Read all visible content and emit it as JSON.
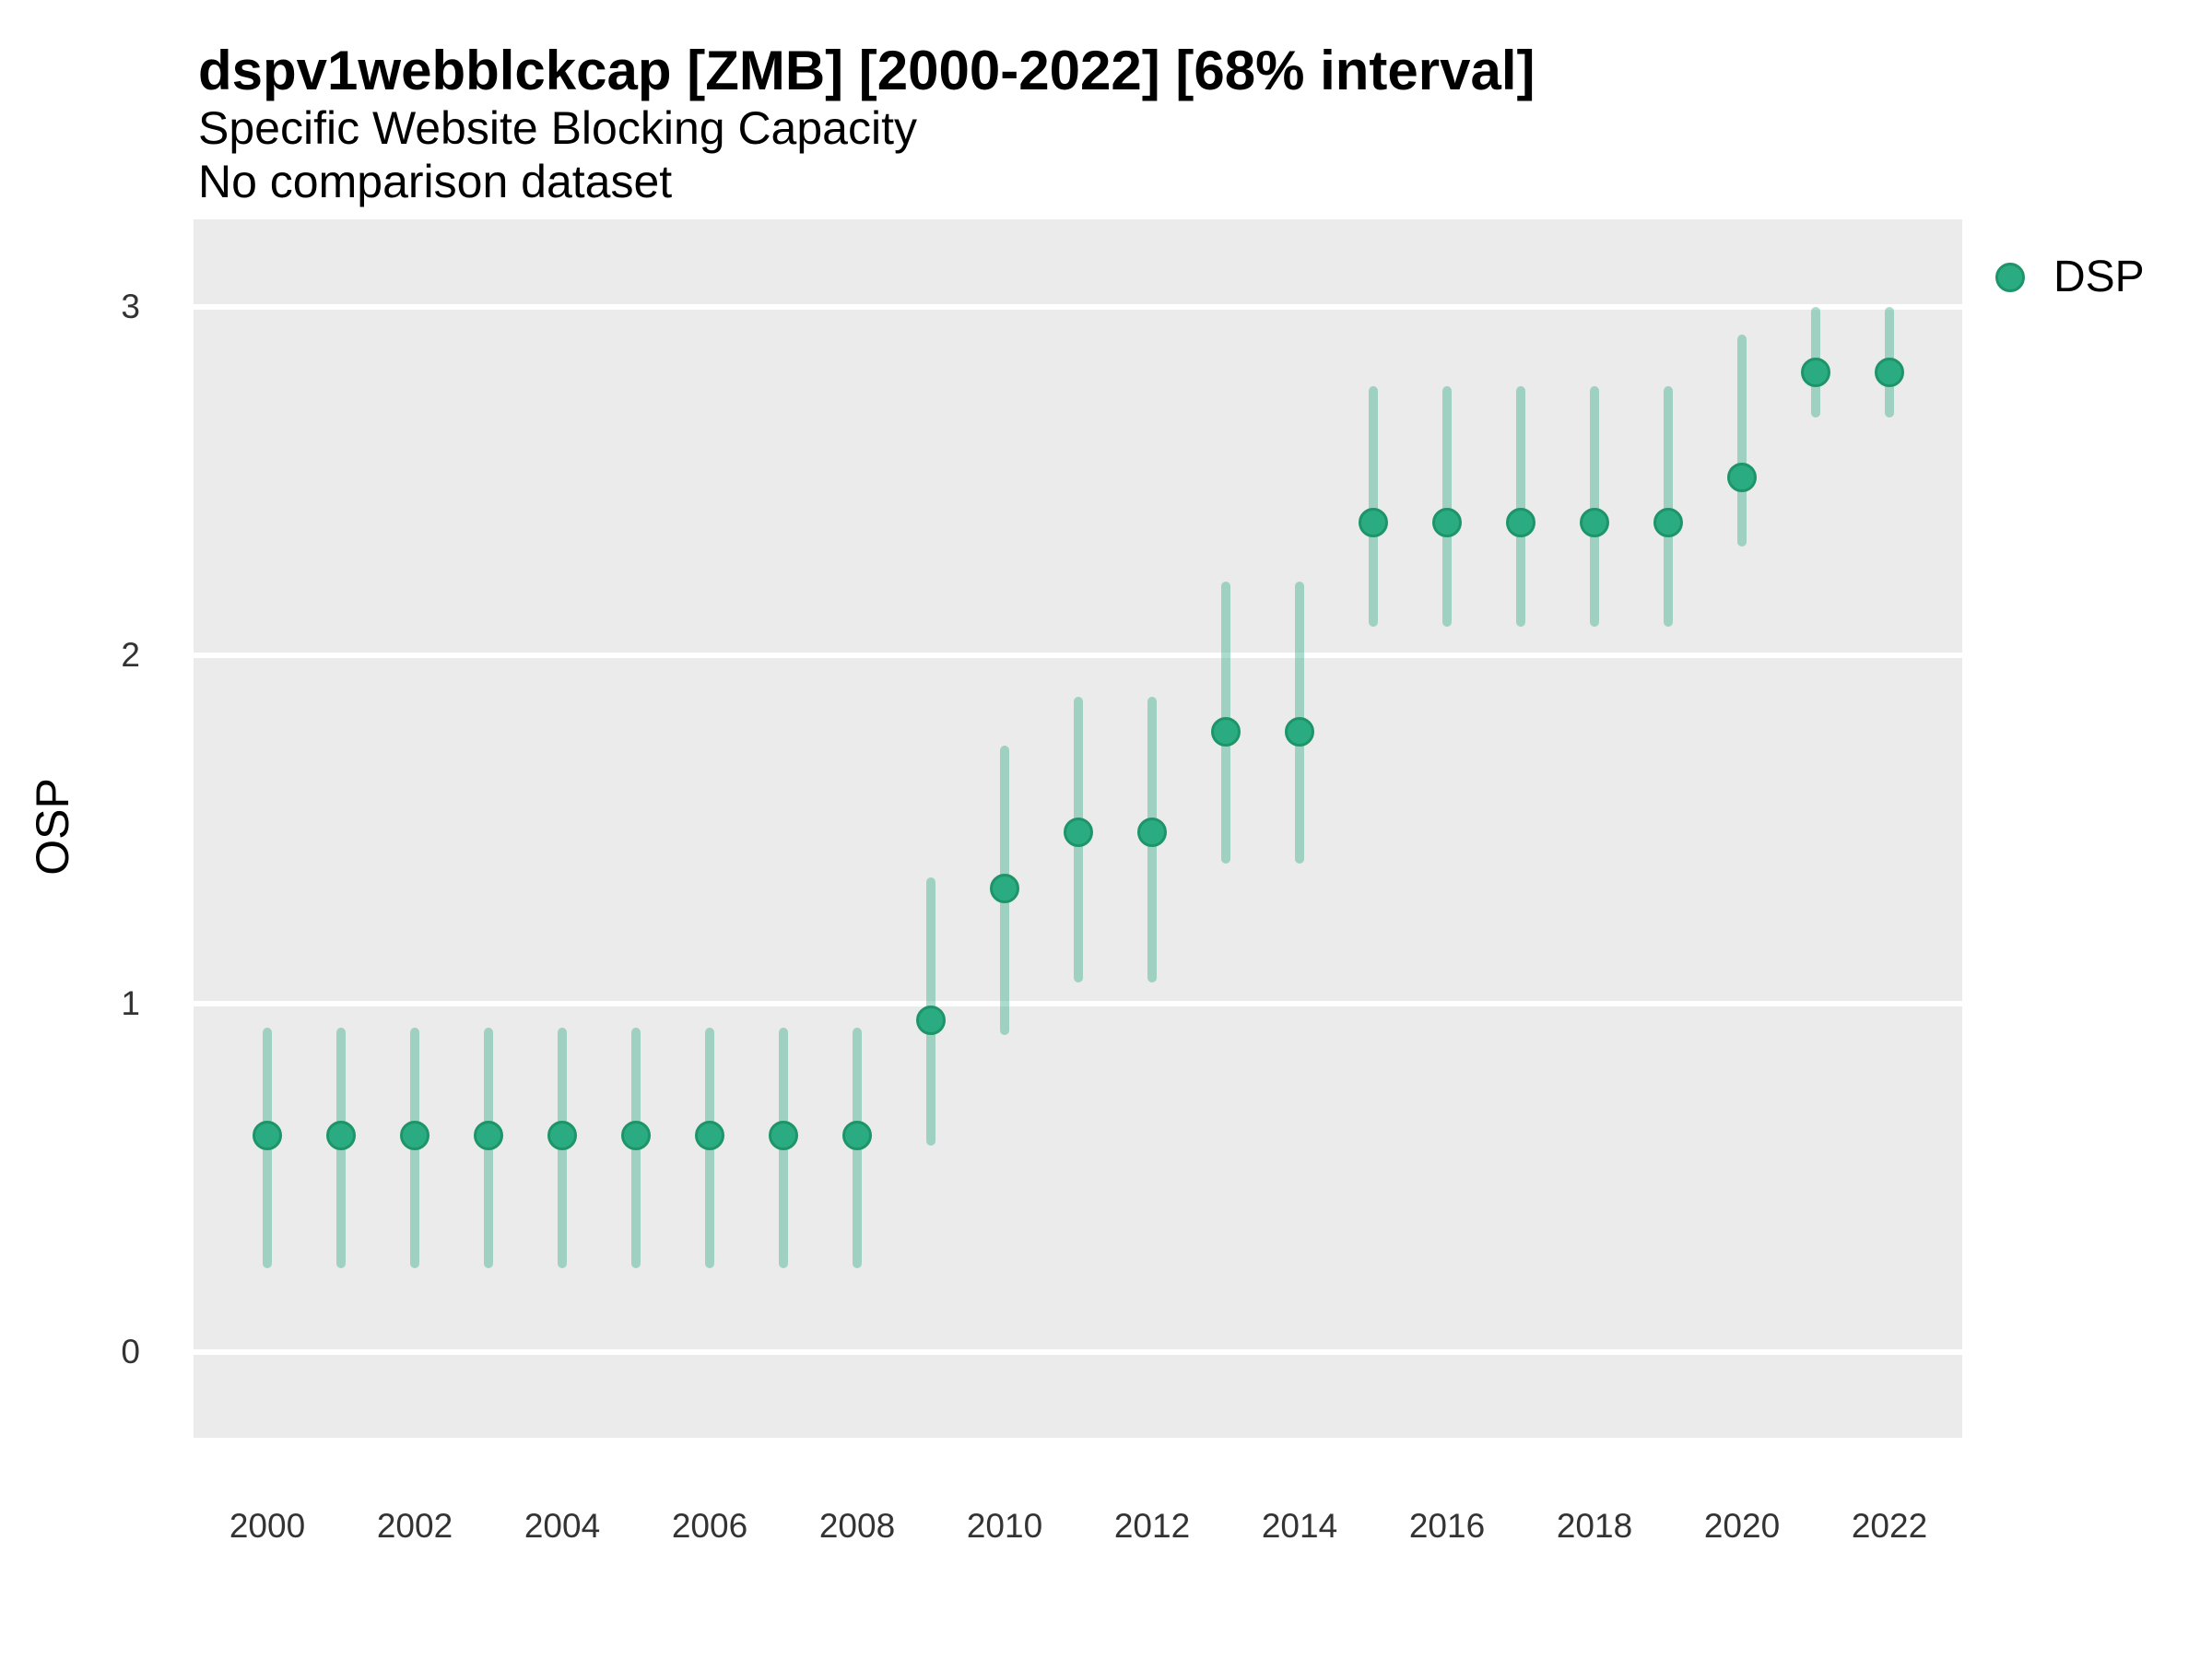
{
  "header": {
    "title": "dspv1webblckcap [ZMB] [2000-2022] [68% interval]",
    "subtitle": "Specific Website Blocking Capacity",
    "note": "No comparison dataset"
  },
  "y_axis": {
    "label": "OSP",
    "tick_labels": [
      "0",
      "1",
      "2",
      "3"
    ]
  },
  "x_axis": {
    "tick_labels": [
      "2000",
      "2002",
      "2004",
      "2006",
      "2008",
      "2010",
      "2012",
      "2014",
      "2016",
      "2018",
      "2020",
      "2022"
    ]
  },
  "legend": {
    "label": "DSP",
    "position": "top-right"
  },
  "colors": {
    "point_fill": "#2BAB81",
    "point_stroke": "#1E9568",
    "interval": "rgba(43,171,129,0.40)",
    "panel_background": "#EBEBEB",
    "gridline": "#FFFFFF",
    "axis_text": "#333333",
    "text": "#000000"
  },
  "chart_data": {
    "type": "scatter",
    "subtype": "pointrange",
    "title": "dspv1webblckcap [ZMB] [2000-2022] [68% interval]",
    "subtitle": "Specific Website Blocking Capacity",
    "note": "No comparison dataset",
    "xlabel": "",
    "ylabel": "OSP",
    "x": [
      2000,
      2001,
      2002,
      2003,
      2004,
      2005,
      2006,
      2007,
      2008,
      2009,
      2010,
      2011,
      2012,
      2013,
      2014,
      2015,
      2016,
      2017,
      2018,
      2019,
      2020,
      2021,
      2022
    ],
    "series": [
      {
        "name": "DSP",
        "estimate": [
          0.62,
          0.62,
          0.62,
          0.62,
          0.62,
          0.62,
          0.62,
          0.62,
          0.62,
          0.95,
          1.33,
          1.49,
          1.49,
          1.78,
          1.78,
          2.38,
          2.38,
          2.38,
          2.38,
          2.38,
          2.51,
          2.81,
          2.81
        ],
        "interval_low": [
          0.24,
          0.24,
          0.24,
          0.24,
          0.24,
          0.24,
          0.24,
          0.24,
          0.24,
          0.59,
          0.91,
          1.06,
          1.06,
          1.4,
          1.4,
          2.08,
          2.08,
          2.08,
          2.08,
          2.08,
          2.31,
          2.68,
          2.68
        ],
        "interval_high": [
          0.93,
          0.93,
          0.93,
          0.93,
          0.93,
          0.93,
          0.93,
          0.93,
          0.93,
          1.36,
          1.74,
          1.88,
          1.88,
          2.21,
          2.21,
          2.77,
          2.77,
          2.77,
          2.77,
          2.77,
          2.92,
          3.0,
          3.0
        ],
        "interval_level": "68%"
      }
    ],
    "yticks": [
      0,
      1,
      2,
      3
    ],
    "xticks": [
      2000,
      2002,
      2004,
      2006,
      2008,
      2010,
      2012,
      2014,
      2016,
      2018,
      2020,
      2022
    ],
    "ylim": [
      -0.25,
      3.25
    ],
    "xlim": [
      1999,
      2023
    ],
    "grid": "horizontal-major-only",
    "legend_position": "top-right"
  }
}
